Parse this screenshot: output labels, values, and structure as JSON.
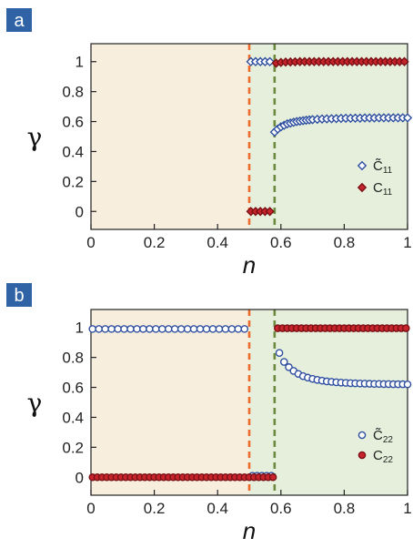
{
  "chart_data": [
    {
      "panel_label": "a",
      "type": "scatter",
      "xlabel": "n",
      "ylabel": "γ",
      "xlim": [
        0,
        1
      ],
      "ylim": [
        -0.12,
        1.12
      ],
      "x_ticks": [
        "0",
        "0.2",
        "0.4",
        "0.6",
        "0.8",
        "1"
      ],
      "y_ticks": [
        "0",
        "0.2",
        "0.4",
        "0.6",
        "0.8",
        "1"
      ],
      "regions": [
        {
          "from": 0,
          "to": 0.5,
          "color": "#f7eedd"
        },
        {
          "from": 0.5,
          "to": 1,
          "color": "#e6efdc"
        }
      ],
      "vlines": [
        {
          "x": 0.5,
          "color": "#ee6a2a"
        },
        {
          "x": 0.58,
          "color": "#6b8a3e"
        }
      ],
      "legend_position": "bottom-right",
      "marker": "diamond",
      "series": [
        {
          "name": "C̃",
          "name_sub": "11",
          "color": "#2e4fa0",
          "x": [
            0.505,
            0.52,
            0.535,
            0.55,
            0.565,
            0.58,
            0.59,
            0.6,
            0.61,
            0.62,
            0.63,
            0.64,
            0.65,
            0.66,
            0.67,
            0.68,
            0.69,
            0.7,
            0.715,
            0.73,
            0.745,
            0.76,
            0.775,
            0.79,
            0.805,
            0.82,
            0.835,
            0.85,
            0.865,
            0.88,
            0.895,
            0.91,
            0.925,
            0.94,
            0.955,
            0.97,
            0.985,
            1.0
          ],
          "y": [
            1,
            1,
            1,
            1,
            1,
            0.53,
            0.55,
            0.565,
            0.575,
            0.585,
            0.59,
            0.595,
            0.6,
            0.603,
            0.606,
            0.609,
            0.611,
            0.613,
            0.615,
            0.617,
            0.618,
            0.619,
            0.62,
            0.621,
            0.622,
            0.622,
            0.623,
            0.623,
            0.624,
            0.624,
            0.624,
            0.625,
            0.625,
            0.625,
            0.625,
            0.625,
            0.625,
            0.625
          ]
        },
        {
          "name": "C",
          "name_sub": "11",
          "color": "#c8242b",
          "x": [
            0.505,
            0.52,
            0.535,
            0.55,
            0.565,
            0.585,
            0.6,
            0.615,
            0.63,
            0.645,
            0.66,
            0.675,
            0.69,
            0.705,
            0.72,
            0.735,
            0.75,
            0.765,
            0.78,
            0.795,
            0.81,
            0.825,
            0.84,
            0.855,
            0.87,
            0.885,
            0.9,
            0.915,
            0.93,
            0.945,
            0.96,
            0.975,
            0.99
          ],
          "y": [
            0,
            0,
            0,
            0,
            0,
            0.99,
            0.995,
            0.997,
            0.998,
            0.999,
            1,
            1,
            1,
            1,
            1,
            1,
            1,
            1,
            1,
            1,
            1,
            1,
            1,
            1,
            1,
            1,
            1,
            1,
            1,
            1,
            1,
            1,
            1
          ]
        }
      ]
    },
    {
      "panel_label": "b",
      "type": "scatter",
      "xlabel": "n",
      "ylabel": "γ",
      "xlim": [
        0,
        1
      ],
      "ylim": [
        -0.12,
        1.12
      ],
      "x_ticks": [
        "0",
        "0.2",
        "0.4",
        "0.6",
        "0.8",
        "1"
      ],
      "y_ticks": [
        "0",
        "0.2",
        "0.4",
        "0.6",
        "0.8",
        "1"
      ],
      "regions": [
        {
          "from": 0,
          "to": 0.5,
          "color": "#f7eedd"
        },
        {
          "from": 0.5,
          "to": 1,
          "color": "#e6efdc"
        }
      ],
      "vlines": [
        {
          "x": 0.5,
          "color": "#ee6a2a"
        },
        {
          "x": 0.58,
          "color": "#6b8a3e"
        }
      ],
      "legend_position": "bottom-right",
      "marker": "circle",
      "series": [
        {
          "name": "C̃",
          "name_sub": "22",
          "color": "#2e4fa0",
          "x": [
            0.005,
            0.025,
            0.045,
            0.065,
            0.085,
            0.105,
            0.125,
            0.145,
            0.165,
            0.185,
            0.205,
            0.225,
            0.245,
            0.265,
            0.285,
            0.305,
            0.325,
            0.345,
            0.365,
            0.385,
            0.405,
            0.425,
            0.445,
            0.465,
            0.485,
            0.51,
            0.525,
            0.54,
            0.555,
            0.57,
            0.595,
            0.61,
            0.625,
            0.64,
            0.655,
            0.67,
            0.685,
            0.7,
            0.715,
            0.73,
            0.745,
            0.76,
            0.775,
            0.79,
            0.805,
            0.82,
            0.835,
            0.85,
            0.865,
            0.88,
            0.895,
            0.91,
            0.925,
            0.94,
            0.955,
            0.97,
            0.985,
            1.0
          ],
          "y": [
            0.99,
            0.99,
            0.99,
            0.99,
            0.99,
            0.99,
            0.99,
            0.99,
            0.99,
            0.99,
            0.99,
            0.99,
            0.99,
            0.99,
            0.99,
            0.99,
            0.99,
            0.99,
            0.99,
            0.99,
            0.99,
            0.99,
            0.99,
            0.99,
            0.99,
            0.01,
            0.01,
            0.01,
            0.01,
            0.01,
            0.83,
            0.77,
            0.735,
            0.71,
            0.69,
            0.675,
            0.665,
            0.657,
            0.65,
            0.645,
            0.64,
            0.637,
            0.634,
            0.632,
            0.63,
            0.628,
            0.627,
            0.626,
            0.625,
            0.624,
            0.623,
            0.623,
            0.622,
            0.622,
            0.621,
            0.621,
            0.621,
            0.62
          ]
        },
        {
          "name": "C",
          "name_sub": "22",
          "color": "#c8242b",
          "x": [
            0.005,
            0.02,
            0.035,
            0.05,
            0.065,
            0.08,
            0.095,
            0.11,
            0.125,
            0.14,
            0.155,
            0.17,
            0.185,
            0.2,
            0.215,
            0.23,
            0.245,
            0.26,
            0.275,
            0.29,
            0.305,
            0.32,
            0.335,
            0.35,
            0.365,
            0.38,
            0.395,
            0.41,
            0.425,
            0.44,
            0.455,
            0.47,
            0.485,
            0.5,
            0.515,
            0.53,
            0.545,
            0.56,
            0.575,
            0.59,
            0.605,
            0.62,
            0.635,
            0.65,
            0.665,
            0.68,
            0.695,
            0.71,
            0.725,
            0.74,
            0.755,
            0.77,
            0.785,
            0.8,
            0.815,
            0.83,
            0.845,
            0.86,
            0.875,
            0.89,
            0.905,
            0.92,
            0.935,
            0.95,
            0.965,
            0.98,
            0.995
          ],
          "y": [
            0,
            0,
            0,
            0,
            0,
            0,
            0,
            0,
            0,
            0,
            0,
            0,
            0,
            0,
            0,
            0,
            0,
            0,
            0,
            0,
            0,
            0,
            0,
            0,
            0,
            0,
            0,
            0,
            0,
            0,
            0,
            0,
            0,
            0,
            0,
            0,
            0,
            0,
            0,
            0.995,
            0.995,
            0.995,
            0.995,
            0.995,
            0.995,
            0.995,
            0.995,
            0.995,
            0.995,
            0.995,
            0.995,
            0.995,
            0.995,
            0.995,
            0.995,
            0.995,
            0.995,
            0.995,
            0.995,
            0.995,
            0.995,
            0.995,
            0.995,
            0.995,
            0.995,
            0.995,
            0.995
          ]
        }
      ]
    }
  ]
}
